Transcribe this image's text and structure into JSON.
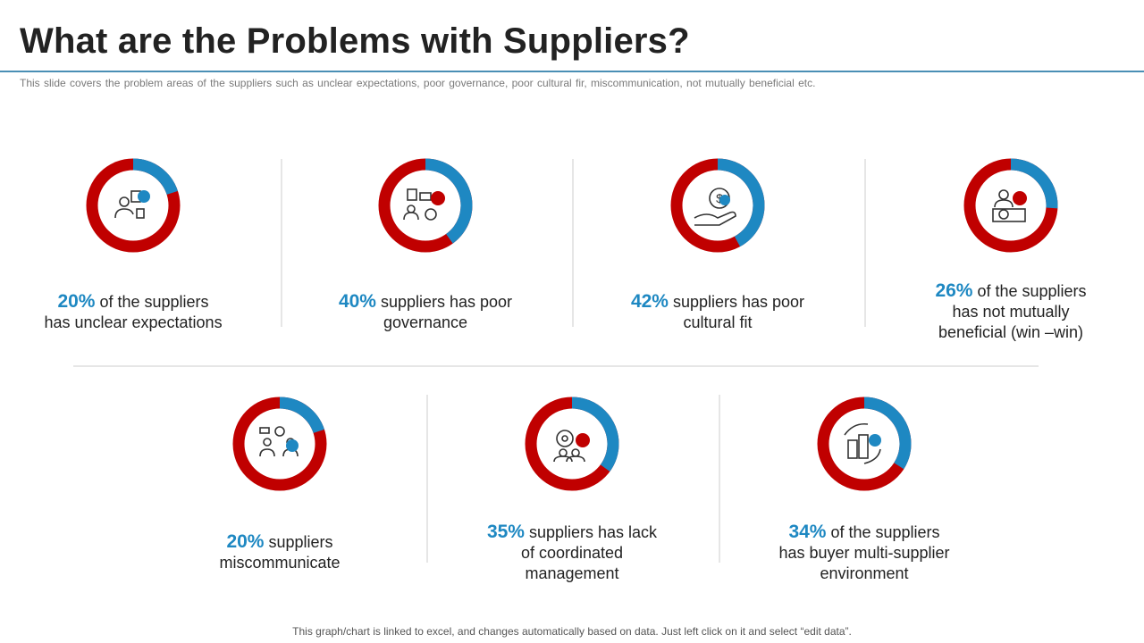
{
  "slide": {
    "title": "What are the Problems with Suppliers?",
    "subtitle": "This slide covers the problem areas of the suppliers such as unclear expectations, poor governance,  poor cultural fir, miscommunication,  not mutually beneficial etc.",
    "footer": "This graph/chart is linked to excel, and changes automatically based on data. Just left click on it and select “edit data”."
  },
  "colors": {
    "accent": "#1e88c2",
    "remainder": "#c00000",
    "rule": "#4a8fb5"
  },
  "chart_data": {
    "type": "pie",
    "variant": "donut",
    "charts": [
      {
        "value": 20,
        "pct_label": "20%",
        "caption_line1": " of the suppliers",
        "caption_line2": "has unclear expectations",
        "caption_line3": "",
        "icon": "person-with-documents-icon"
      },
      {
        "value": 40,
        "pct_label": "40%",
        "caption_line1": " suppliers has poor",
        "caption_line2": "governance",
        "caption_line3": "",
        "icon": "team-governance-icon"
      },
      {
        "value": 42,
        "pct_label": "42%",
        "caption_line1": " suppliers has poor",
        "caption_line2": "cultural fit",
        "caption_line3": "",
        "icon": "hand-coin-icon"
      },
      {
        "value": 26,
        "pct_label": "26%",
        "caption_line1": " of the suppliers",
        "caption_line2": "has not mutually",
        "caption_line3": "beneficial (win –win)",
        "icon": "buyer-desk-coin-icon"
      },
      {
        "value": 20,
        "pct_label": "20%",
        "caption_line1": " suppliers",
        "caption_line2": "miscommunicate",
        "caption_line3": "",
        "icon": "conversation-icon"
      },
      {
        "value": 35,
        "pct_label": "35%",
        "caption_line1": " suppliers has lack",
        "caption_line2": "of coordinated",
        "caption_line3": "management",
        "icon": "gear-team-icon"
      },
      {
        "value": 34,
        "pct_label": "34%",
        "caption_line1": " of the suppliers",
        "caption_line2": "has buyer multi-supplier",
        "caption_line3": "environment",
        "icon": "buildings-icon"
      }
    ]
  }
}
